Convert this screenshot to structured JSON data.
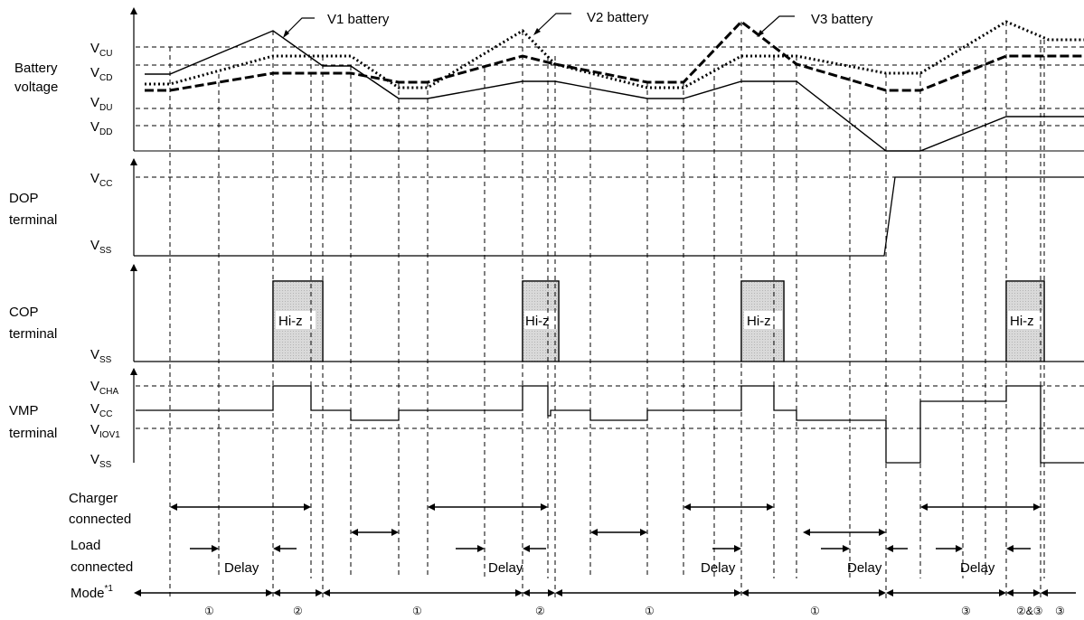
{
  "row_labels": {
    "battery": [
      "Battery",
      "voltage"
    ],
    "dop": [
      "DOP",
      "terminal"
    ],
    "cop": [
      "COP",
      "terminal"
    ],
    "vmp": [
      "VMP",
      "terminal"
    ],
    "charger": [
      "Charger",
      "connected"
    ],
    "load": [
      "Load",
      "connected"
    ],
    "mode": "Mode",
    "mode_sup": "*1"
  },
  "levels": {
    "battery": [
      {
        "main": "V",
        "sub": "CU"
      },
      {
        "main": "V",
        "sub": "CD"
      },
      {
        "main": "V",
        "sub": "DU"
      },
      {
        "main": "V",
        "sub": "DD"
      }
    ],
    "dop": [
      {
        "main": "V",
        "sub": "CC"
      },
      {
        "main": "V",
        "sub": "SS"
      }
    ],
    "cop": [
      {
        "main": "V",
        "sub": "SS"
      }
    ],
    "vmp": [
      {
        "main": "V",
        "sub": "CHA"
      },
      {
        "main": "V",
        "sub": "CC"
      },
      {
        "main": "V",
        "sub": "IOV1"
      },
      {
        "main": "V",
        "sub": "SS"
      }
    ]
  },
  "battery_callouts": [
    "V1 battery",
    "V2 battery",
    "V3 battery"
  ],
  "hiz_label": "Hi-z",
  "delay_label": "Delay",
  "mode_markers": [
    "①",
    "②",
    "①",
    "②",
    "①",
    "①",
    "③",
    "②&③",
    "③"
  ]
}
